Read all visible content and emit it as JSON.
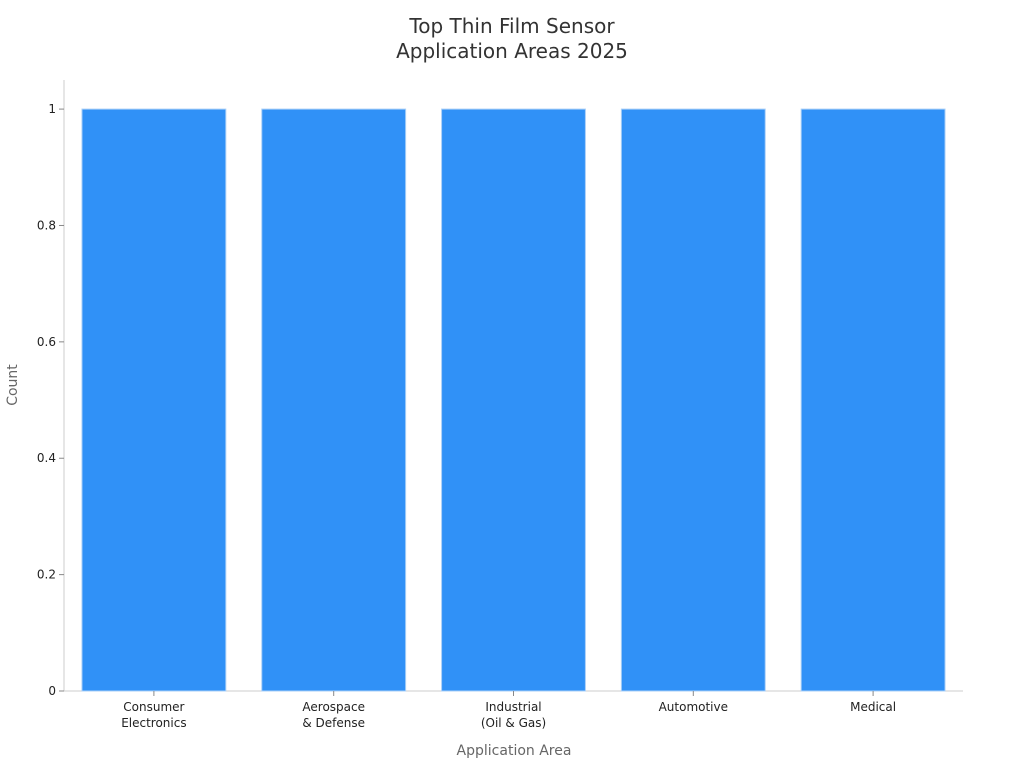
{
  "chart_data": {
    "type": "bar",
    "title": "Top Thin Film Sensor\nApplication Areas 2025",
    "x_label": "Application Area",
    "y_label": "Count",
    "categories": [
      "Consumer\nElectronics",
      "Aerospace\n& Defense",
      "Industrial\n(Oil & Gas)",
      "Automotive",
      "Medical"
    ],
    "values": [
      1,
      1,
      1,
      1,
      1
    ],
    "color": "#3091f7",
    "ylim": [
      0,
      1.05
    ],
    "yticks": [
      0,
      0.2,
      0.4,
      0.6,
      0.8,
      1
    ],
    "grid": false
  }
}
